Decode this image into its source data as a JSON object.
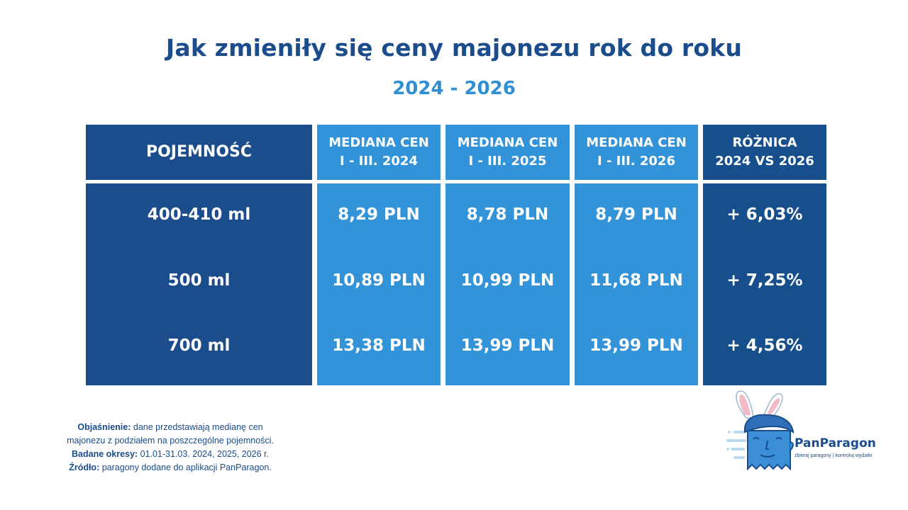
{
  "title": "Jak zmieniły się ceny majonezu rok do roku",
  "subtitle": "2024 - 2026",
  "colors": {
    "dark_blue": "#1b4c8c",
    "light_blue": "#3393d8",
    "white": "#ffffff"
  },
  "chart_data": {
    "type": "table",
    "columns": [
      {
        "line1": "POJEMNOŚĆ",
        "line2": ""
      },
      {
        "line1": "MEDIANA CEN",
        "line2": "I - III. 2024"
      },
      {
        "line1": "MEDIANA CEN",
        "line2": "I - III. 2025"
      },
      {
        "line1": "MEDIANA CEN",
        "line2": "I - III. 2026"
      },
      {
        "line1": "RÓŻNICA",
        "line2": "2024 VS 2026"
      }
    ],
    "rows": [
      [
        "400-410 ml",
        "8,29 PLN",
        "8,78 PLN",
        "8,79 PLN",
        "+ 6,03%"
      ],
      [
        "500 ml",
        "10,89 PLN",
        "10,99 PLN",
        "11,68 PLN",
        "+ 7,25%"
      ],
      [
        "700 ml",
        "13,38 PLN",
        "13,99 PLN",
        "13,99 PLN",
        "+ 4,56%"
      ]
    ]
  },
  "footnote": {
    "explanation_label": "Objaśnienie:",
    "explanation_text1": "dane przedstawiają medianę cen",
    "explanation_text2": "majonezu z podziałem na poszczególne pojemności.",
    "periods_label": "Badane okresy:",
    "periods_text": "01.01-31.03. 2024, 2025, 2026 r.",
    "source_label": "Źródło:",
    "source_text": "paragony dodane do aplikacji PanParagon."
  },
  "logo": {
    "name": "PanParagon",
    "tagline": "zbieraj paragony | kontroluj wydatki"
  }
}
